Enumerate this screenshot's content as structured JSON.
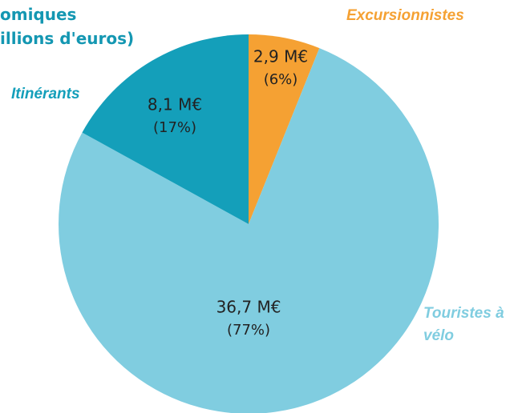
{
  "chart_data": {
    "type": "pie",
    "title": [
      "omiques",
      "illions d'euros)"
    ],
    "categories": [
      "Excursionnistes",
      "Touristes à vélo",
      "Itinérants"
    ],
    "values": [
      2.9,
      36.7,
      8.1
    ],
    "value_labels": [
      "2,9 M€",
      "36,7 M€",
      "8,1 M€"
    ],
    "percentages": [
      6,
      77,
      17
    ],
    "percentage_labels": [
      "(6%)",
      "(77%)",
      "(17%)"
    ],
    "colors": [
      "#f5a133",
      "#80cde0",
      "#149fba"
    ]
  }
}
